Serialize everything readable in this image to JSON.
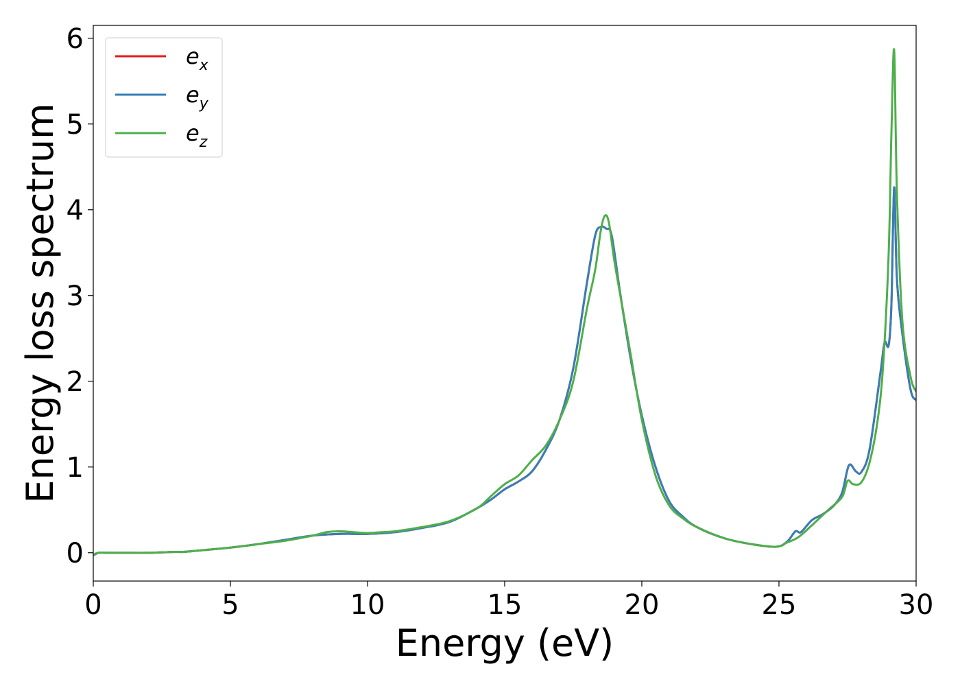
{
  "chart_data": {
    "type": "line",
    "title": "",
    "xlabel": "Energy (eV)",
    "ylabel": "Energy loss spectrum",
    "xlim": [
      0,
      30
    ],
    "ylim": [
      -0.33,
      6.15
    ],
    "xticks": [
      "0",
      "5",
      "10",
      "15",
      "20",
      "25",
      "30"
    ],
    "yticks": [
      "0",
      "1",
      "2",
      "3",
      "4",
      "5",
      "6"
    ],
    "grid": false,
    "legend_position": "top-left",
    "legend": [
      {
        "base": "e",
        "sub": "x",
        "color": "#e41a1c"
      },
      {
        "base": "e",
        "sub": "y",
        "color": "#377eb8"
      },
      {
        "base": "e",
        "sub": "z",
        "color": "#4daf4a"
      }
    ],
    "series": [
      {
        "name": "e_x",
        "color": "#e41a1c",
        "x": [
          0,
          0.2,
          0.5,
          1,
          2,
          3,
          3.3,
          4,
          5,
          6,
          7,
          8,
          9,
          10,
          11,
          12,
          13,
          14,
          14.5,
          15,
          15.5,
          16,
          16.5,
          17,
          17.5,
          18,
          18.3,
          18.5,
          18.7,
          18.9,
          19.2,
          19.6,
          20,
          20.5,
          21,
          21.5,
          22,
          23,
          24,
          24.9,
          25.3,
          25.6,
          25.8,
          26.2,
          26.6,
          27,
          27.3,
          27.55,
          27.8,
          28,
          28.3,
          28.7,
          28.85,
          29,
          29.1,
          29.2,
          29.3,
          29.5,
          29.8,
          30
        ],
        "y": [
          -0.03,
          0.0,
          0.0,
          0.0,
          0.0,
          0.01,
          0.01,
          0.03,
          0.06,
          0.1,
          0.15,
          0.2,
          0.22,
          0.22,
          0.24,
          0.29,
          0.36,
          0.52,
          0.62,
          0.74,
          0.83,
          0.95,
          1.2,
          1.55,
          2.15,
          3.15,
          3.7,
          3.8,
          3.78,
          3.7,
          3.05,
          2.25,
          1.6,
          1.0,
          0.6,
          0.42,
          0.3,
          0.17,
          0.1,
          0.07,
          0.13,
          0.25,
          0.24,
          0.38,
          0.45,
          0.55,
          0.7,
          1.02,
          0.95,
          0.94,
          1.2,
          2.1,
          2.45,
          2.42,
          2.9,
          4.26,
          3.2,
          2.55,
          1.9,
          1.78
        ]
      },
      {
        "name": "e_y",
        "color": "#377eb8",
        "x": [
          0,
          0.2,
          0.5,
          1,
          2,
          3,
          3.3,
          4,
          5,
          6,
          7,
          8,
          9,
          10,
          11,
          12,
          13,
          14,
          14.5,
          15,
          15.5,
          16,
          16.5,
          17,
          17.5,
          18,
          18.3,
          18.5,
          18.7,
          18.9,
          19.2,
          19.6,
          20,
          20.5,
          21,
          21.5,
          22,
          23,
          24,
          24.9,
          25.3,
          25.6,
          25.8,
          26.2,
          26.6,
          27,
          27.3,
          27.55,
          27.8,
          28,
          28.3,
          28.7,
          28.85,
          29,
          29.1,
          29.2,
          29.3,
          29.5,
          29.8,
          30
        ],
        "y": [
          -0.03,
          0.0,
          0.0,
          0.0,
          0.0,
          0.01,
          0.01,
          0.03,
          0.06,
          0.1,
          0.15,
          0.2,
          0.22,
          0.22,
          0.24,
          0.29,
          0.36,
          0.52,
          0.62,
          0.74,
          0.83,
          0.95,
          1.2,
          1.55,
          2.15,
          3.15,
          3.7,
          3.8,
          3.78,
          3.7,
          3.05,
          2.25,
          1.6,
          1.0,
          0.6,
          0.42,
          0.3,
          0.17,
          0.1,
          0.07,
          0.13,
          0.25,
          0.24,
          0.38,
          0.45,
          0.55,
          0.7,
          1.02,
          0.95,
          0.94,
          1.2,
          2.1,
          2.45,
          2.42,
          2.9,
          4.26,
          3.2,
          2.55,
          1.9,
          1.78
        ]
      },
      {
        "name": "e_z",
        "color": "#4daf4a",
        "x": [
          0,
          0.2,
          0.5,
          1,
          2,
          3,
          3.3,
          4,
          5,
          6,
          7,
          8,
          8.5,
          9,
          9.5,
          10,
          10.5,
          11,
          12,
          13,
          14,
          14.5,
          15,
          15.5,
          16,
          16.5,
          17,
          17.5,
          18,
          18.3,
          18.5,
          18.65,
          18.8,
          19,
          19.3,
          19.6,
          20,
          20.5,
          21,
          21.5,
          22,
          23,
          24,
          24.9,
          25.3,
          25.7,
          26.2,
          26.8,
          27.3,
          27.5,
          27.7,
          28,
          28.3,
          28.6,
          28.8,
          29,
          29.1,
          29.2,
          29.3,
          29.5,
          29.8,
          30
        ],
        "y": [
          -0.02,
          0.0,
          0.0,
          0.0,
          0.0,
          0.01,
          0.01,
          0.03,
          0.06,
          0.1,
          0.14,
          0.2,
          0.24,
          0.25,
          0.24,
          0.23,
          0.24,
          0.25,
          0.3,
          0.37,
          0.52,
          0.66,
          0.8,
          0.9,
          1.08,
          1.25,
          1.55,
          2.0,
          2.85,
          3.3,
          3.75,
          3.93,
          3.85,
          3.4,
          2.85,
          2.3,
          1.55,
          0.9,
          0.55,
          0.4,
          0.3,
          0.17,
          0.1,
          0.07,
          0.12,
          0.18,
          0.32,
          0.5,
          0.65,
          0.84,
          0.8,
          0.82,
          1.05,
          1.55,
          2.2,
          3.5,
          4.9,
          5.86,
          4.2,
          2.7,
          2.05,
          1.88
        ]
      }
    ]
  }
}
